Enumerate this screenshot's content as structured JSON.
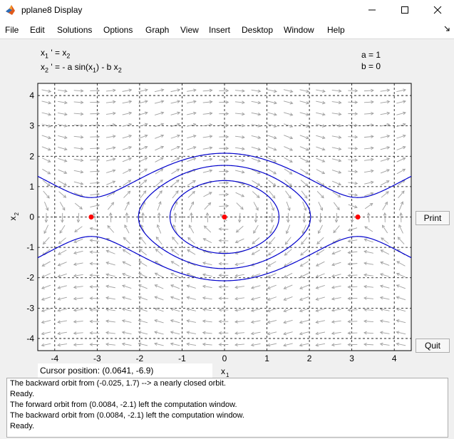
{
  "window": {
    "title": "pplane8 Display",
    "minimize_icon": "minimize-icon",
    "maximize_icon": "maximize-icon",
    "close_icon": "close-icon"
  },
  "menu": [
    "File",
    "Edit",
    "Solutions",
    "Options",
    "Graph",
    "View",
    "Insert",
    "Desktop",
    "Window",
    "Help"
  ],
  "equations": {
    "eq1": {
      "lhs": "x",
      "lhs_sub": "1",
      "op": " ' = x",
      "rhs_sub": "2"
    },
    "eq2": {
      "lhs": "x",
      "lhs_sub": "2",
      "op": " ' = - a sin(x",
      "mid_sub": "1",
      "mid": ") - b x",
      "rhs_sub": "2"
    }
  },
  "parameters": {
    "a": "a = 1",
    "b": "b = 0"
  },
  "buttons": {
    "print": "Print",
    "quit": "Quit"
  },
  "cursor_position": "Cursor position:  (0.0641, -6.9)",
  "messages": [
    "The backward orbit from (-0.025, 1.7) --> a nearly closed orbit.",
    "Ready.",
    "The forward orbit from (0.0084, -2.1) left the computation window.",
    "The backward orbit from (0.0084, -2.1) left the computation window.",
    "Ready."
  ],
  "chart_data": {
    "type": "phase-plane",
    "system": "x1' = x2, x2' = -a sin(x1) - b x2",
    "params": {
      "a": 1,
      "b": 0
    },
    "xlabel": "x1",
    "ylabel": "x2",
    "xlim": [
      -4.4,
      4.4
    ],
    "ylim": [
      -4.4,
      4.4
    ],
    "xticks": [
      -4,
      -3,
      -2,
      -1,
      0,
      1,
      2,
      3,
      4
    ],
    "yticks": [
      -4,
      -3,
      -2,
      -1,
      0,
      1,
      2,
      3,
      4
    ],
    "grid": true,
    "equilibria": [
      [
        -3.1416,
        0
      ],
      [
        0,
        0
      ],
      [
        3.1416,
        0
      ]
    ],
    "closed_orbits": [
      1.2,
      1.7
    ],
    "rotating_orbits": [
      2.1,
      -2.1
    ],
    "equilibrium_color": "#ff0000",
    "orbit_color": "#0000cc",
    "arrow_color": "#a0a0a0"
  }
}
